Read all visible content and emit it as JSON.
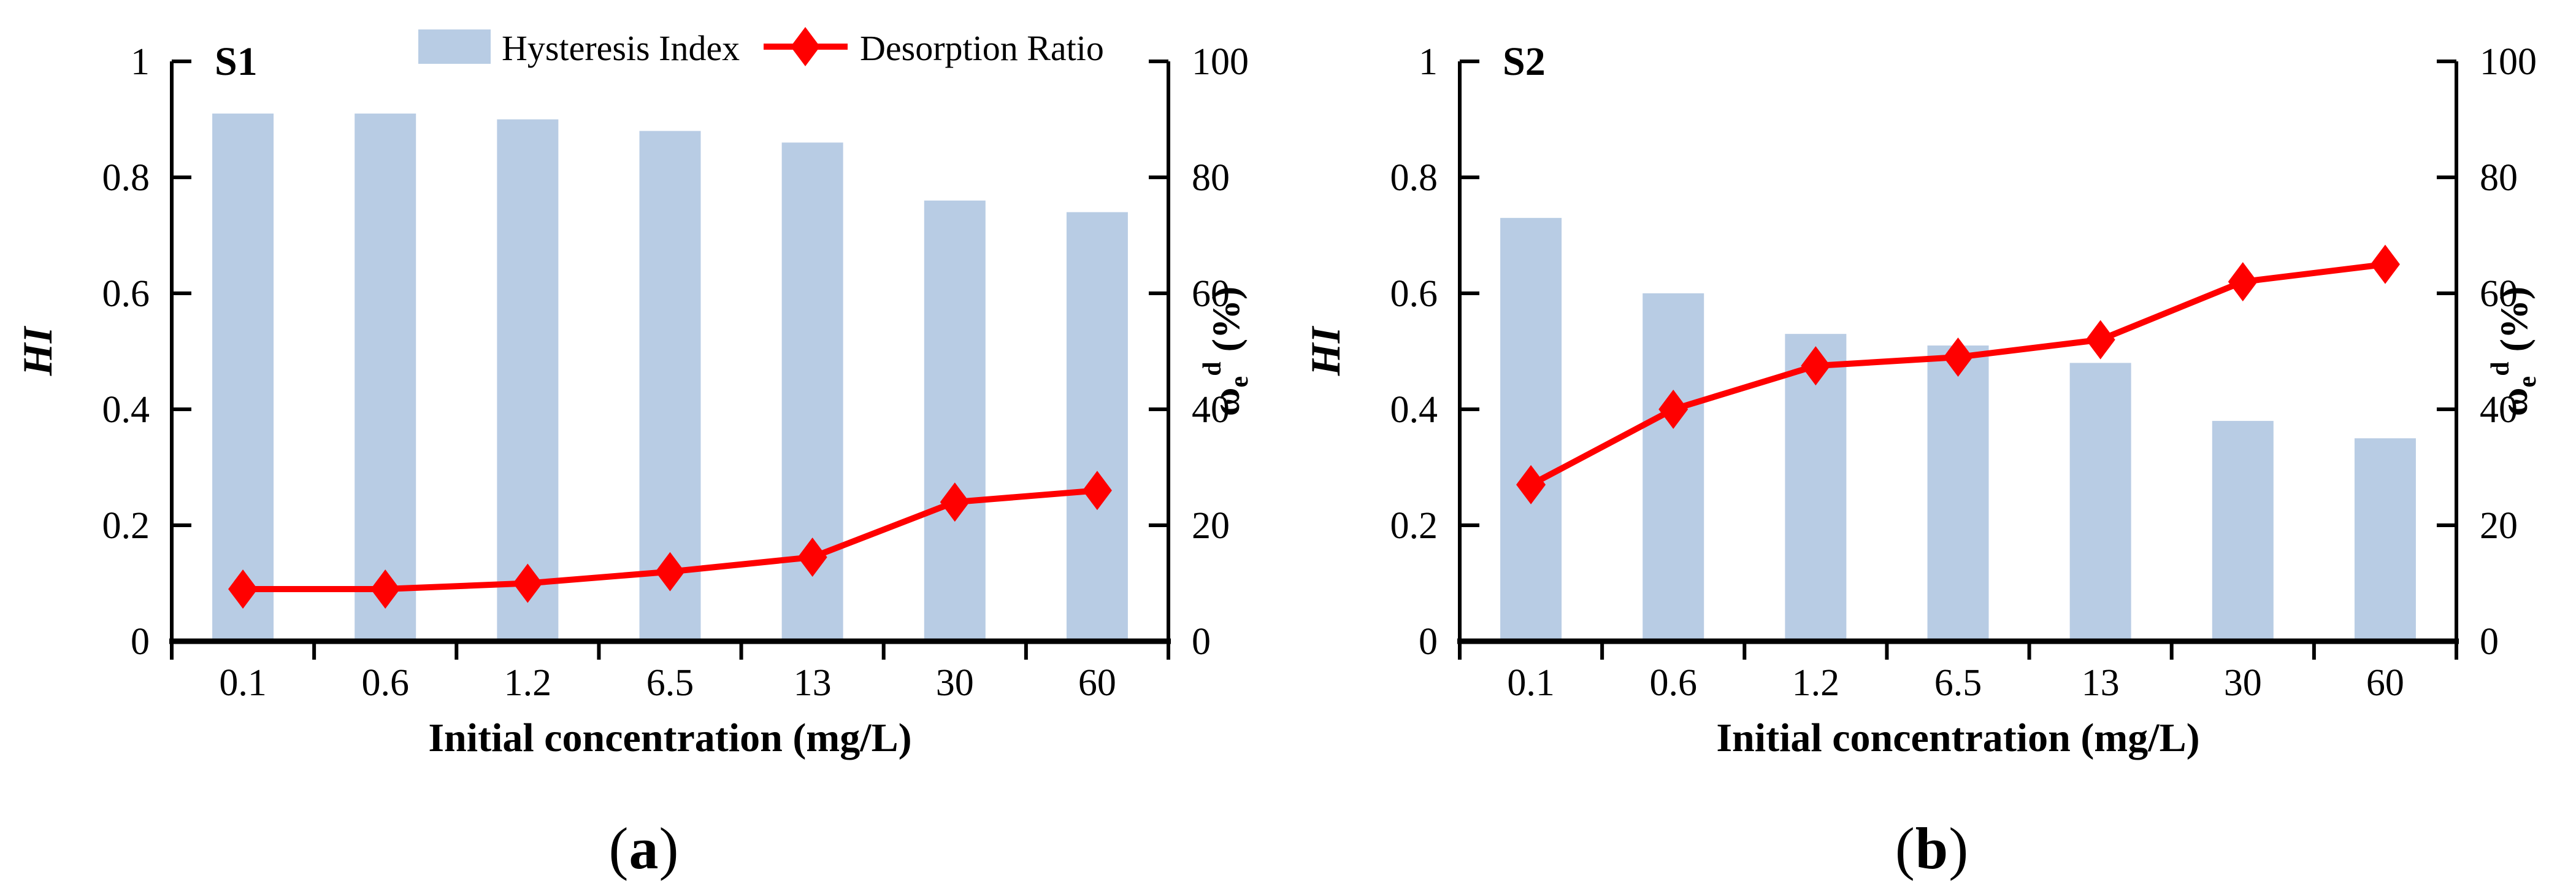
{
  "figure": {
    "x_axis_title": "Initial concentration (mg/L)",
    "categories": [
      "0.1",
      "0.6",
      "1.2",
      "6.5",
      "13",
      "30",
      "60"
    ],
    "left_axis": {
      "label": "HI",
      "tick_labels": [
        "0",
        "0.2",
        "0.4",
        "0.6",
        "0.8",
        "1"
      ],
      "min": 0,
      "max": 1
    },
    "right_axis": {
      "label_symbol": "ω",
      "label_sub": "e",
      "label_sup": "d",
      "label_rest": " (%)",
      "tick_labels": [
        "0",
        "20",
        "40",
        "60",
        "80",
        "100"
      ],
      "min": 0,
      "max": 100
    },
    "legend": {
      "bar_label": "Hysteresis Index",
      "line_label": "Desorption Ratio"
    },
    "colors": {
      "bar_fill": "#B8CCE4",
      "line": "#FF0000",
      "axis": "#000000"
    }
  },
  "chart_data": [
    {
      "type": "bar",
      "panel_title": "S1",
      "show_legend": true,
      "categories": [
        "0.1",
        "0.6",
        "1.2",
        "6.5",
        "13",
        "30",
        "60"
      ],
      "xlabel": "Initial concentration (mg/L)",
      "ylabel_left": "HI",
      "ylabel_right": "ωe^d (%)",
      "ylim_left": [
        0,
        1
      ],
      "ylim_right": [
        0,
        100
      ],
      "series": [
        {
          "name": "Hysteresis Index",
          "axis": "left",
          "type": "bar",
          "values": [
            0.91,
            0.91,
            0.9,
            0.88,
            0.86,
            0.76,
            0.74
          ]
        },
        {
          "name": "Desorption Ratio",
          "axis": "right",
          "type": "line",
          "values": [
            9,
            9,
            10,
            12,
            14.5,
            24,
            26
          ]
        }
      ],
      "caption": {
        "open": "(",
        "letter": "a",
        "close": ")"
      }
    },
    {
      "type": "bar",
      "panel_title": "S2",
      "show_legend": false,
      "categories": [
        "0.1",
        "0.6",
        "1.2",
        "6.5",
        "13",
        "30",
        "60"
      ],
      "xlabel": "Initial concentration (mg/L)",
      "ylabel_left": "HI",
      "ylabel_right": "ωe^d (%)",
      "ylim_left": [
        0,
        1
      ],
      "ylim_right": [
        0,
        100
      ],
      "series": [
        {
          "name": "Hysteresis Index",
          "axis": "left",
          "type": "bar",
          "values": [
            0.73,
            0.6,
            0.53,
            0.51,
            0.48,
            0.38,
            0.35
          ]
        },
        {
          "name": "Desorption Ratio",
          "axis": "right",
          "type": "line",
          "values": [
            27,
            40,
            47.5,
            49,
            52,
            62,
            65
          ]
        }
      ],
      "caption": {
        "open": "(",
        "letter": "b",
        "close": ")"
      }
    }
  ]
}
